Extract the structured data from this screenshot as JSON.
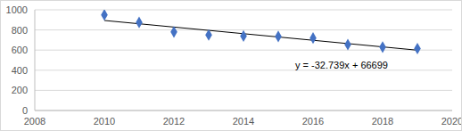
{
  "chart_data": {
    "type": "scatter",
    "x": [
      2010,
      2011,
      2012,
      2013,
      2014,
      2015,
      2016,
      2017,
      2018,
      2019
    ],
    "series": [
      {
        "type": "scatter",
        "color": "#4472c4",
        "marker": "diamond",
        "values": [
          950,
          875,
          780,
          750,
          740,
          735,
          720,
          655,
          630,
          615
        ]
      },
      {
        "type": "line",
        "color": "#000000",
        "line_style": "solid",
        "x": [
          2010,
          2019
        ],
        "values": [
          894,
          599
        ]
      }
    ],
    "annotations": [
      "y = -32.739x + 66699"
    ],
    "xlim": [
      2008,
      2020
    ],
    "xticks": [
      2008,
      2010,
      2012,
      2014,
      2016,
      2018,
      2020
    ],
    "ylim": [
      0,
      1000
    ],
    "yticks": [
      0,
      200,
      400,
      600,
      800,
      1000
    ],
    "grid": true
  }
}
